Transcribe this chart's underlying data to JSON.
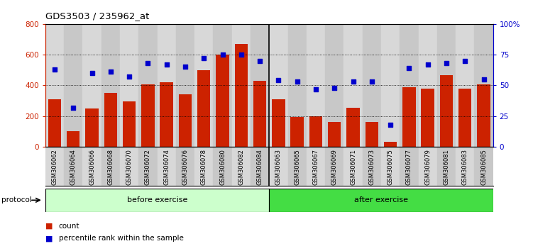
{
  "title": "GDS3503 / 235962_at",
  "categories": [
    "GSM306062",
    "GSM306064",
    "GSM306066",
    "GSM306068",
    "GSM306070",
    "GSM306072",
    "GSM306074",
    "GSM306076",
    "GSM306078",
    "GSM306080",
    "GSM306082",
    "GSM306084",
    "GSM306063",
    "GSM306065",
    "GSM306067",
    "GSM306069",
    "GSM306071",
    "GSM306073",
    "GSM306075",
    "GSM306077",
    "GSM306079",
    "GSM306081",
    "GSM306083",
    "GSM306085"
  ],
  "counts": [
    310,
    100,
    250,
    350,
    295,
    405,
    420,
    340,
    500,
    600,
    670,
    430,
    310,
    195,
    200,
    160,
    255,
    160,
    35,
    390,
    380,
    465,
    380,
    405
  ],
  "percentiles": [
    63,
    32,
    60,
    61,
    57,
    68,
    67,
    65,
    72,
    75,
    75,
    70,
    54,
    53,
    47,
    48,
    53,
    53,
    18,
    64,
    67,
    68,
    70,
    55
  ],
  "group_split": 12,
  "before_label": "before exercise",
  "after_label": "after exercise",
  "protocol_label": "protocol",
  "legend_count": "count",
  "legend_percentile": "percentile rank within the sample",
  "bar_color": "#cc2200",
  "dot_color": "#0000cc",
  "before_color": "#ccffcc",
  "after_color": "#44dd44",
  "col_bg_even": "#d8d8d8",
  "col_bg_odd": "#c8c8c8",
  "ylim_left": [
    0,
    800
  ],
  "ylim_right": [
    0,
    100
  ],
  "yticks_left": [
    0,
    200,
    400,
    600,
    800
  ],
  "yticks_right": [
    0,
    25,
    50,
    75,
    100
  ]
}
